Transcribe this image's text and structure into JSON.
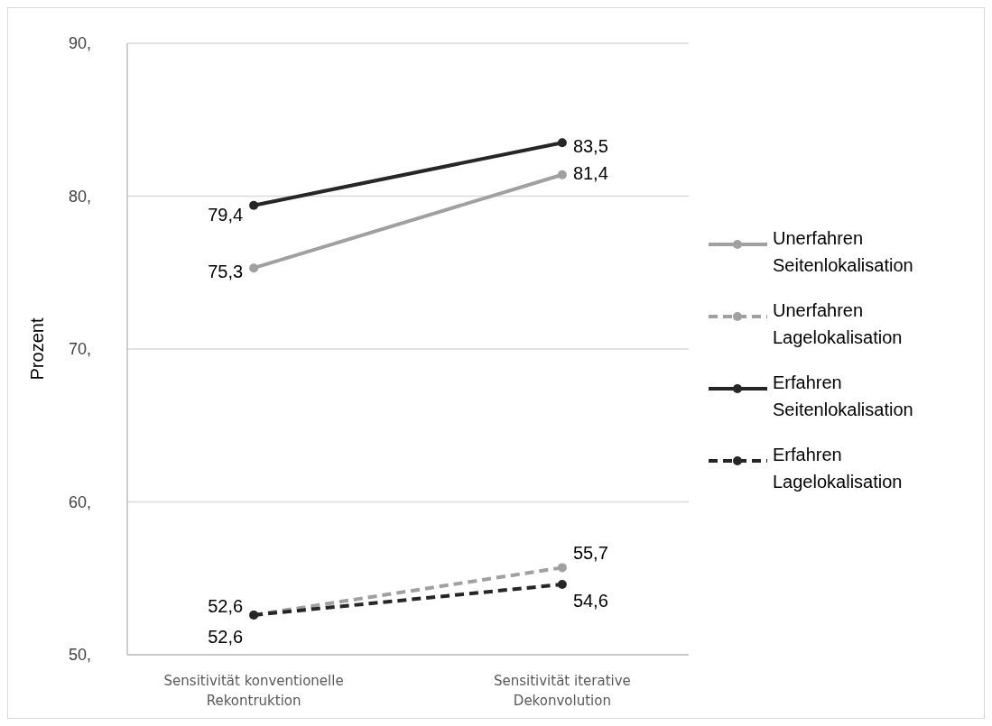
{
  "chart_data": {
    "type": "line",
    "ylabel": "Prozent",
    "categories": [
      "Sensitivität konventionelle Rekontruktion",
      "Sensitivität iterative Dekonvolution"
    ],
    "series": [
      {
        "name": "Unerfahren Seitenlokalisation",
        "color": "#a0a0a0",
        "values": [
          75.3,
          81.4
        ],
        "value_labels": [
          "75,3",
          "81,4"
        ],
        "line_style": "solid"
      },
      {
        "name": "Unerfahren Lagelokalisation",
        "color": "#a0a0a0",
        "values": [
          52.6,
          55.7
        ],
        "value_labels": [
          "52,6",
          "55,7"
        ],
        "line_style": "dashed"
      },
      {
        "name": "Erfahren Seitenlokalisation",
        "color": "#262626",
        "values": [
          79.4,
          83.5
        ],
        "value_labels": [
          "79,4",
          "83,5"
        ],
        "line_style": "solid"
      },
      {
        "name": "Erfahren Lagelokalisation",
        "color": "#262626",
        "values": [
          52.6,
          54.6
        ],
        "value_labels": [
          "52,6",
          "54,6"
        ],
        "line_style": "dashed"
      }
    ],
    "ylim": [
      50,
      90
    ],
    "yticks": [
      {
        "value": 50,
        "label": "50,"
      },
      {
        "value": 60,
        "label": "60,"
      },
      {
        "value": 70,
        "label": "70,"
      },
      {
        "value": 80,
        "label": "80,"
      },
      {
        "value": 90,
        "label": "90,"
      }
    ],
    "grid": "y",
    "legend": "right",
    "marker": "circle"
  }
}
